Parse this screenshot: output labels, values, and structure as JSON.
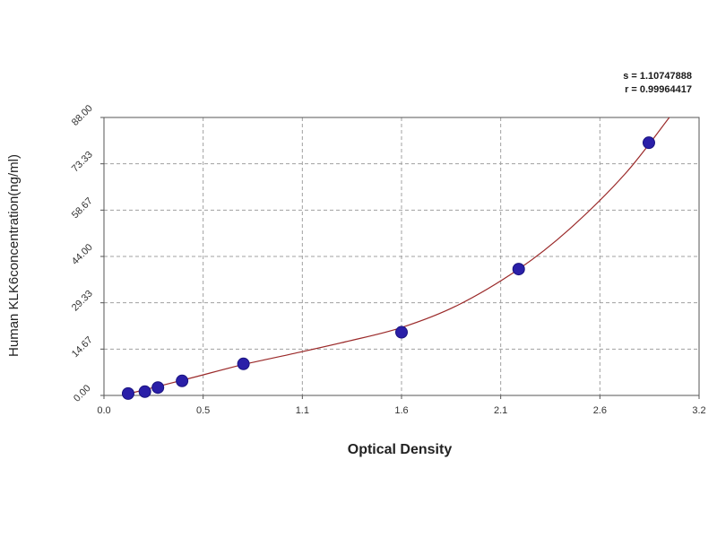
{
  "stats": {
    "s_line": "s = 1.10747888",
    "r_line": "r = 0.99964417"
  },
  "chart_data": {
    "type": "scatter",
    "title": "",
    "xlabel": "Optical Density",
    "ylabel": "Human KLK6concentration(ng/ml)",
    "xlim": [
      0.0,
      3.2
    ],
    "ylim": [
      0.0,
      88.0
    ],
    "xticks": [
      "0.0",
      "0.5",
      "1.1",
      "1.6",
      "2.1",
      "2.6",
      "3.2"
    ],
    "xtick_values": [
      0.0,
      0.5333,
      1.0667,
      1.6,
      2.1333,
      2.6667,
      3.2
    ],
    "yticks": [
      "0.00",
      "14.67",
      "29.33",
      "44.00",
      "58.67",
      "73.33",
      "88.00"
    ],
    "ytick_values": [
      0.0,
      14.67,
      29.33,
      44.0,
      58.67,
      73.33,
      88.0
    ],
    "grid": true,
    "series": [
      {
        "type": "scatter",
        "x": [
          0.13,
          0.22,
          0.29,
          0.42,
          0.75,
          1.6,
          2.23,
          2.93
        ],
        "y": [
          0.6,
          1.2,
          2.5,
          4.6,
          10.0,
          20.0,
          40.0,
          80.0
        ]
      },
      {
        "type": "line",
        "x": [
          0.13,
          0.3,
          0.5,
          0.75,
          1.0,
          1.3,
          1.6,
          1.9,
          2.23,
          2.5,
          2.8,
          3.04
        ],
        "y": [
          0.5,
          3.0,
          6.0,
          9.8,
          13.0,
          17.0,
          21.5,
          28.5,
          40.0,
          52.5,
          70.0,
          88.0
        ]
      }
    ],
    "colors": {
      "points": "#2a1fa8",
      "curve": "#9b2a2a",
      "grid": "#a0a0a0",
      "axis": "#555555"
    }
  }
}
